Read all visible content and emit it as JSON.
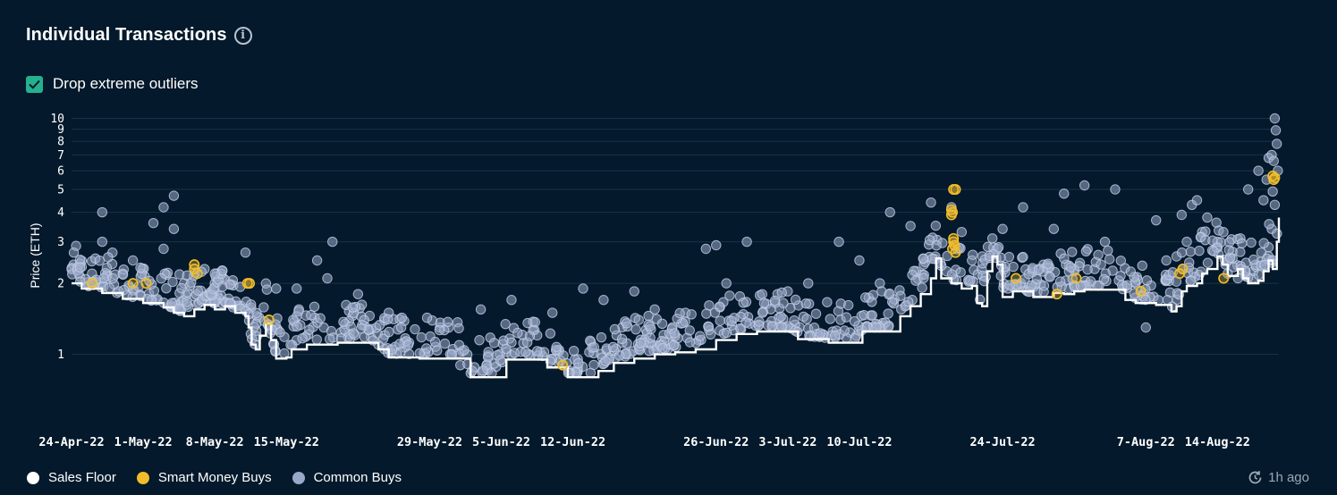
{
  "header": {
    "title": "Individual Transactions",
    "info_icon": "info-icon"
  },
  "filter": {
    "label": "Drop extreme outliers",
    "checked": true
  },
  "legend": [
    {
      "label": "Sales Floor",
      "color": "#ffffff"
    },
    {
      "label": "Smart Money Buys",
      "color": "#f1bd2b"
    },
    {
      "label": "Common Buys",
      "color": "#99a8c8"
    }
  ],
  "status": {
    "updated": "1h ago",
    "icon": "refresh-clock-icon"
  },
  "chart_data": {
    "type": "scatter",
    "ylabel": "Price (ETH)",
    "yscale": "log",
    "ylim": [
      0.65,
      10.4
    ],
    "yticks": [
      1,
      2,
      3,
      4,
      5,
      6,
      7,
      8,
      9,
      10
    ],
    "xlim": [
      0,
      118
    ],
    "xticks": [
      {
        "x": 0,
        "label": "24-Apr-22"
      },
      {
        "x": 7,
        "label": "1-May-22"
      },
      {
        "x": 14,
        "label": "8-May-22"
      },
      {
        "x": 21,
        "label": "15-May-22"
      },
      {
        "x": 35,
        "label": "29-May-22"
      },
      {
        "x": 42,
        "label": "5-Jun-22"
      },
      {
        "x": 49,
        "label": "12-Jun-22"
      },
      {
        "x": 63,
        "label": "26-Jun-22"
      },
      {
        "x": 70,
        "label": "3-Jul-22"
      },
      {
        "x": 77,
        "label": "10-Jul-22"
      },
      {
        "x": 91,
        "label": "24-Jul-22"
      },
      {
        "x": 105,
        "label": "7-Aug-22"
      },
      {
        "x": 112,
        "label": "14-Aug-22"
      }
    ],
    "grid": true,
    "sales_floor": [
      [
        0,
        2.0
      ],
      [
        1,
        1.9
      ],
      [
        3,
        1.82
      ],
      [
        5,
        1.72
      ],
      [
        7,
        1.65
      ],
      [
        9,
        1.58
      ],
      [
        10,
        1.5
      ],
      [
        11,
        1.45
      ],
      [
        12,
        1.55
      ],
      [
        13,
        1.62
      ],
      [
        14,
        1.55
      ],
      [
        15,
        1.6
      ],
      [
        16,
        1.5
      ],
      [
        17,
        1.45
      ],
      [
        17.3,
        1.3
      ],
      [
        17.6,
        1.1
      ],
      [
        18,
        1.05
      ],
      [
        18.4,
        1.2
      ],
      [
        19,
        1.35
      ],
      [
        19.5,
        1.15
      ],
      [
        20,
        0.96
      ],
      [
        21,
        0.97
      ],
      [
        21.5,
        1.05
      ],
      [
        22,
        1.05
      ],
      [
        23,
        1.1
      ],
      [
        26,
        1.12
      ],
      [
        29,
        1.12
      ],
      [
        30,
        1.05
      ],
      [
        31,
        0.97
      ],
      [
        34,
        0.96
      ],
      [
        38,
        0.96
      ],
      [
        39,
        0.8
      ],
      [
        42,
        0.8
      ],
      [
        42.5,
        0.95
      ],
      [
        46,
        0.95
      ],
      [
        46.5,
        0.88
      ],
      [
        48,
        0.88
      ],
      [
        48.5,
        0.8
      ],
      [
        51,
        0.8
      ],
      [
        51.5,
        0.85
      ],
      [
        53,
        0.92
      ],
      [
        55,
        0.96
      ],
      [
        57,
        1.0
      ],
      [
        59,
        1.02
      ],
      [
        61,
        1.05
      ],
      [
        63,
        1.15
      ],
      [
        65,
        1.22
      ],
      [
        67,
        1.25
      ],
      [
        70,
        1.25
      ],
      [
        71,
        1.16
      ],
      [
        74,
        1.12
      ],
      [
        77,
        1.12
      ],
      [
        77.3,
        1.25
      ],
      [
        80,
        1.25
      ],
      [
        81,
        1.45
      ],
      [
        82,
        1.6
      ],
      [
        83,
        1.8
      ],
      [
        84,
        2.1
      ],
      [
        84.5,
        2.55
      ],
      [
        85,
        2.1
      ],
      [
        86,
        2.0
      ],
      [
        87,
        1.9
      ],
      [
        88,
        1.95
      ],
      [
        88.5,
        1.65
      ],
      [
        89,
        1.6
      ],
      [
        89.5,
        2.25
      ],
      [
        90,
        2.6
      ],
      [
        90.5,
        2.4
      ],
      [
        91,
        1.75
      ],
      [
        92,
        1.85
      ],
      [
        94,
        1.75
      ],
      [
        95,
        1.75
      ],
      [
        96,
        1.82
      ],
      [
        97,
        1.8
      ],
      [
        98,
        1.85
      ],
      [
        99,
        1.88
      ],
      [
        102,
        1.88
      ],
      [
        103,
        1.7
      ],
      [
        104,
        1.65
      ],
      [
        106,
        1.62
      ],
      [
        107,
        1.62
      ],
      [
        107.5,
        1.52
      ],
      [
        108,
        1.6
      ],
      [
        108.5,
        1.85
      ],
      [
        109,
        1.95
      ],
      [
        110,
        2.0
      ],
      [
        110.5,
        2.2
      ],
      [
        111,
        2.3
      ],
      [
        112,
        2.6
      ],
      [
        112.5,
        2.4
      ],
      [
        113,
        2.15
      ],
      [
        114,
        2.3
      ],
      [
        114.5,
        2.1
      ],
      [
        115,
        2.0
      ],
      [
        116,
        2.05
      ],
      [
        116.5,
        2.25
      ],
      [
        117,
        2.5
      ],
      [
        117.4,
        2.3
      ],
      [
        117.8,
        3.0
      ],
      [
        118,
        3.8
      ]
    ],
    "smart_money_buys": [
      [
        2,
        2.0
      ],
      [
        6,
        2.0
      ],
      [
        7.3,
        2.0
      ],
      [
        12,
        2.3
      ],
      [
        12,
        2.4
      ],
      [
        12.3,
        2.2
      ],
      [
        17.2,
        2.0
      ],
      [
        17.4,
        2.0
      ],
      [
        19.3,
        1.4
      ],
      [
        48,
        0.9
      ],
      [
        86.2,
        5.0
      ],
      [
        86.4,
        5.0
      ],
      [
        86.0,
        4.1
      ],
      [
        86.1,
        4.0
      ],
      [
        86.0,
        3.9
      ],
      [
        86.2,
        3.0
      ],
      [
        86.3,
        2.9
      ],
      [
        86.1,
        2.8
      ],
      [
        86.4,
        2.7
      ],
      [
        86.2,
        3.1
      ],
      [
        92.3,
        2.1
      ],
      [
        96.3,
        1.8
      ],
      [
        98.2,
        2.1
      ],
      [
        104.5,
        1.85
      ],
      [
        108.3,
        2.2
      ],
      [
        108.6,
        2.3
      ],
      [
        112.6,
        2.1
      ],
      [
        117.4,
        5.7
      ],
      [
        117.6,
        5.6
      ],
      [
        117.5,
        5.5
      ]
    ],
    "common_buys_sample": [
      [
        0.2,
        2.4
      ],
      [
        1,
        2.35
      ],
      [
        2,
        2.2
      ],
      [
        3,
        4.0
      ],
      [
        3,
        3.0
      ],
      [
        4,
        2.7
      ],
      [
        5,
        2.2
      ],
      [
        6,
        2.5
      ],
      [
        8,
        3.6
      ],
      [
        9,
        4.2
      ],
      [
        9,
        2.8
      ],
      [
        10,
        4.7
      ],
      [
        10,
        3.4
      ],
      [
        11,
        2.0
      ],
      [
        13,
        2.3
      ],
      [
        14,
        2.0
      ],
      [
        17,
        2.7
      ],
      [
        20,
        1.9
      ],
      [
        22,
        1.9
      ],
      [
        24,
        2.5
      ],
      [
        25,
        2.1
      ],
      [
        25.5,
        3.0
      ],
      [
        28,
        1.8
      ],
      [
        31,
        1.5
      ],
      [
        36,
        1.3
      ],
      [
        38,
        0.9
      ],
      [
        40,
        1.55
      ],
      [
        43,
        1.7
      ],
      [
        47,
        1.5
      ],
      [
        50,
        1.9
      ],
      [
        52,
        1.7
      ],
      [
        55,
        1.85
      ],
      [
        57,
        1.55
      ],
      [
        60,
        1.5
      ],
      [
        62,
        2.8
      ],
      [
        63,
        2.9
      ],
      [
        64,
        2.0
      ],
      [
        66,
        3.0
      ],
      [
        69,
        1.8
      ],
      [
        70,
        1.85
      ],
      [
        72,
        2.0
      ],
      [
        75,
        3.0
      ],
      [
        77,
        2.5
      ],
      [
        79,
        2.0
      ],
      [
        80,
        4.0
      ],
      [
        82,
        3.5
      ],
      [
        84,
        4.4
      ],
      [
        86,
        4.2
      ],
      [
        87,
        3.3
      ],
      [
        88,
        2.5
      ],
      [
        89,
        2.6
      ],
      [
        90,
        3.1
      ],
      [
        91,
        3.4
      ],
      [
        93,
        4.2
      ],
      [
        95,
        2.4
      ],
      [
        96,
        3.4
      ],
      [
        97,
        4.8
      ],
      [
        98,
        2.3
      ],
      [
        99,
        5.2
      ],
      [
        100,
        2.3
      ],
      [
        101,
        3.0
      ],
      [
        102,
        5.0
      ],
      [
        104,
        2.0
      ],
      [
        105,
        1.3
      ],
      [
        106,
        3.7
      ],
      [
        107,
        2.5
      ],
      [
        108,
        2.6
      ],
      [
        108.5,
        3.9
      ],
      [
        109,
        3.0
      ],
      [
        109.5,
        4.3
      ],
      [
        110,
        4.5
      ],
      [
        110.5,
        3.3
      ],
      [
        111,
        3.8
      ],
      [
        112,
        3.0
      ],
      [
        113,
        2.2
      ],
      [
        114,
        2.1
      ],
      [
        115,
        5.0
      ],
      [
        116,
        6.0
      ],
      [
        116.5,
        4.5
      ],
      [
        116.8,
        5.5
      ],
      [
        117,
        6.8
      ],
      [
        117.3,
        7.0
      ],
      [
        117.5,
        6.6
      ],
      [
        117.6,
        10.0
      ],
      [
        117.7,
        8.9
      ],
      [
        117.8,
        7.8
      ],
      [
        117.9,
        6.0
      ],
      [
        117.4,
        4.9
      ],
      [
        117.6,
        4.3
      ],
      [
        117.3,
        3.4
      ],
      [
        117.2,
        2.5
      ]
    ]
  }
}
